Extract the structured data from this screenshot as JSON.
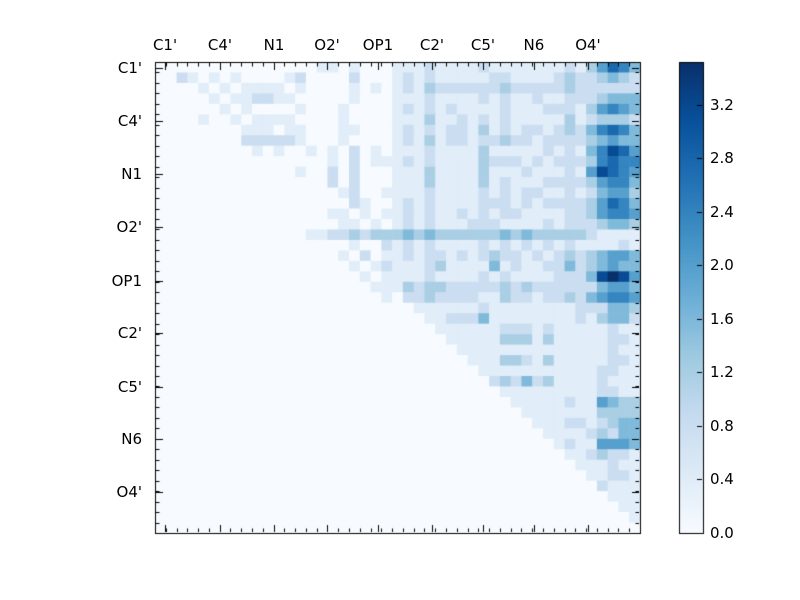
{
  "figure": {
    "background": "#ffffff",
    "frame_color": "#000000"
  },
  "chart_data": {
    "type": "heatmap",
    "title": "",
    "xlabel": "",
    "ylabel": "",
    "n": 45,
    "triangle": "upper",
    "grid": false,
    "legend_position": "colorbar-right",
    "x_axis": {
      "tick_labels": [
        "C1'",
        "C4'",
        "N1",
        "O2'",
        "OP1",
        "C2'",
        "C5'",
        "N6",
        "O4'"
      ],
      "tick_centers_cells": [
        0.93,
        6.03,
        11.04,
        15.96,
        20.69,
        25.7,
        30.43,
        35.16,
        40.17
      ]
    },
    "y_axis": {
      "tick_labels": [
        "C1'",
        "C4'",
        "N1",
        "O2'",
        "OP1",
        "C2'",
        "C5'",
        "N6",
        "O4'"
      ],
      "tick_centers_cells": [
        0.57,
        5.63,
        10.7,
        15.76,
        20.92,
        25.88,
        31.04,
        36.0,
        41.06
      ]
    },
    "value_min": 0.0,
    "value_max": 3.52,
    "level_step": 0.4,
    "level_values": [
      0.0,
      0.4,
      0.8,
      1.2,
      1.6,
      2.0,
      2.4,
      2.8,
      3.2,
      3.52
    ],
    "level_colors": [
      "#f7fbff",
      "#e1edf8",
      "#cbdef1",
      "#aacfe5",
      "#80badb",
      "#57a0ce",
      "#3585c0",
      "#1a68ae",
      "#084b94",
      "#08306b"
    ],
    "colormap": {
      "name": "Blues",
      "stops": [
        "#f7fbff",
        "#deebf7",
        "#c6dbef",
        "#9ecae1",
        "#6baed6",
        "#4292c6",
        "#2171b5",
        "#08519c",
        "#08306b"
      ]
    },
    "colorbar": {
      "tick_labels": [
        "0.0",
        "0.4",
        "0.8",
        "1.2",
        "1.6",
        "2.0",
        "2.4",
        "2.8",
        "3.2"
      ],
      "tick_values": [
        0.0,
        0.4,
        0.8,
        1.2,
        1.6,
        2.0,
        2.4,
        2.8,
        3.2
      ]
    },
    "matrix_levels": [
      "000000000000000110100011121111211111112135764",
      "002101010000120000200012121111122111123223432",
      "000010101111010000101012132222223222223222222",
      "000001011221100000100011121111212112112223444",
      "000000101000010001000012121211112111222135654",
      "000010010111100001000011131121212111113123332",
      "000000001110110001100012121221312122123246764",
      "000000002222210001000012131221223221222234544",
      "000000000101001010201011121111311111212146875",
      "000000000000000010201112121111322212122236766",
      "000000000000010020200011131111311121112158765",
      "000000000000000020200011131111312111222235664",
      "000000000000000001200111121111212122112124553",
      "000000000000000000210012121111222121222235764",
      "000000000000000011010112121121212211112235665",
      "000000000000000001101012121112221111212223443",
      "000000000000001122323334343333334343333321111",
      "000000000000000000100212121111212121212111121",
      "000000000000000001020112122121232212123234554",
      "000000000000000000101211123111141211224234544",
      "000000000000000000010111121111212111122248985",
      "000000000000000000001113233222223232222224554",
      "000000000000000000000102232222113221223245665",
      "000000000000000000000000111111211111111222443",
      "000000000000000000000000011222411111111213442",
      "000000000000000000000000001111112221211111211",
      "000000000000000000000000000111113331311111221",
      "000000000000000000000000000011111111111111211",
      "000000000000000000000000000001113321311111221",
      "000000000000000000000000000000111111111112211",
      "000000000000000000000000000000023242311112111",
      "000000000000000000000000000000001111111112211",
      "000000000000000000000000000000000111112115433",
      "000000000000000000000000000000000011111113333",
      "000000000000000000000000000000000001112212344",
      "000000000000000000000000000000000000111123244",
      "000000000000000000000000000000000000012115554",
      "000000000000000000000000000000000000001123221",
      "000000000000000000000000000000000000000111211",
      "000000000000000000000000000000000000000011221",
      "000000000000000000000000000000000000000002111",
      "000000000000000000000000000000000000000000111",
      "000000000000000000000000000000000000000000011",
      "000000000000000000000000000000000000000000001",
      "000000000000000000000000000000000000000000000"
    ]
  }
}
